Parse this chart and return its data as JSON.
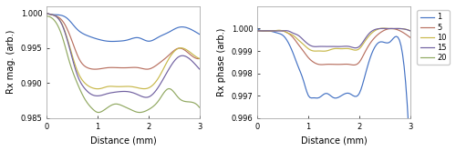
{
  "colors": {
    "1": "#4472C4",
    "5": "#B87060",
    "10": "#C8B84A",
    "15": "#7060A0",
    "20": "#90A860"
  },
  "legend_labels": [
    "1",
    "5",
    "10",
    "15",
    "20"
  ],
  "xlabel": "Distance (mm)",
  "ylabel_left": "Rx mag. (arb.)",
  "ylabel_right": "Rx phase (arb.)",
  "xlim": [
    0,
    3
  ],
  "ylim_left": [
    0.985,
    1.001
  ],
  "ylim_right": [
    0.996,
    1.001
  ],
  "yticks_left": [
    0.985,
    0.99,
    0.995,
    1.0
  ],
  "yticks_right": [
    0.996,
    0.997,
    0.998,
    0.999,
    1.0
  ],
  "figsize": [
    5.0,
    1.66
  ],
  "dpi": 100,
  "lw": 0.85,
  "background_color": "#ffffff",
  "mag_1": [
    [
      0,
      1.0
    ],
    [
      0.15,
      0.9998
    ],
    [
      0.4,
      0.9993
    ],
    [
      0.6,
      0.9977
    ],
    [
      0.8,
      0.9968
    ],
    [
      1.0,
      0.9963
    ],
    [
      1.2,
      0.996
    ],
    [
      1.4,
      0.996
    ],
    [
      1.6,
      0.9962
    ],
    [
      1.8,
      0.9965
    ],
    [
      2.0,
      0.996
    ],
    [
      2.2,
      0.9966
    ],
    [
      2.4,
      0.9973
    ],
    [
      2.6,
      0.998
    ],
    [
      2.8,
      0.9978
    ],
    [
      3.0,
      0.997
    ]
  ],
  "mag_5": [
    [
      0,
      1.0
    ],
    [
      0.15,
      0.9997
    ],
    [
      0.35,
      0.9985
    ],
    [
      0.5,
      0.996
    ],
    [
      0.65,
      0.9933
    ],
    [
      0.8,
      0.9922
    ],
    [
      1.0,
      0.992
    ],
    [
      1.2,
      0.9922
    ],
    [
      1.4,
      0.9922
    ],
    [
      1.6,
      0.9922
    ],
    [
      1.8,
      0.9922
    ],
    [
      2.0,
      0.992
    ],
    [
      2.2,
      0.9928
    ],
    [
      2.4,
      0.994
    ],
    [
      2.6,
      0.995
    ],
    [
      2.8,
      0.9942
    ],
    [
      3.0,
      0.9935
    ]
  ],
  "mag_10": [
    [
      0,
      1.0
    ],
    [
      0.15,
      0.9997
    ],
    [
      0.3,
      0.9985
    ],
    [
      0.45,
      0.9953
    ],
    [
      0.6,
      0.9918
    ],
    [
      0.75,
      0.99
    ],
    [
      0.9,
      0.9893
    ],
    [
      1.05,
      0.9892
    ],
    [
      1.2,
      0.9895
    ],
    [
      1.35,
      0.9895
    ],
    [
      1.5,
      0.9895
    ],
    [
      1.65,
      0.9895
    ],
    [
      1.8,
      0.9893
    ],
    [
      2.0,
      0.9893
    ],
    [
      2.2,
      0.9908
    ],
    [
      2.4,
      0.9935
    ],
    [
      2.6,
      0.995
    ],
    [
      2.8,
      0.9945
    ],
    [
      3.0,
      0.9935
    ]
  ],
  "mag_15": [
    [
      0,
      1.0
    ],
    [
      0.15,
      0.9997
    ],
    [
      0.3,
      0.9984
    ],
    [
      0.45,
      0.995
    ],
    [
      0.6,
      0.9912
    ],
    [
      0.75,
      0.9892
    ],
    [
      0.9,
      0.9883
    ],
    [
      1.05,
      0.9882
    ],
    [
      1.2,
      0.9885
    ],
    [
      1.35,
      0.9887
    ],
    [
      1.5,
      0.9888
    ],
    [
      1.65,
      0.9887
    ],
    [
      1.8,
      0.9883
    ],
    [
      2.0,
      0.988
    ],
    [
      2.2,
      0.9895
    ],
    [
      2.4,
      0.992
    ],
    [
      2.6,
      0.9938
    ],
    [
      2.8,
      0.9935
    ],
    [
      3.0,
      0.992
    ]
  ],
  "mag_20": [
    [
      0,
      0.9996
    ],
    [
      0.15,
      0.999
    ],
    [
      0.3,
      0.9968
    ],
    [
      0.45,
      0.993
    ],
    [
      0.6,
      0.99
    ],
    [
      0.75,
      0.9877
    ],
    [
      0.9,
      0.9863
    ],
    [
      1.0,
      0.9858
    ],
    [
      1.1,
      0.986
    ],
    [
      1.2,
      0.9865
    ],
    [
      1.35,
      0.987
    ],
    [
      1.5,
      0.9867
    ],
    [
      1.65,
      0.9862
    ],
    [
      1.8,
      0.9858
    ],
    [
      2.0,
      0.9862
    ],
    [
      2.2,
      0.9875
    ],
    [
      2.4,
      0.9892
    ],
    [
      2.6,
      0.9878
    ],
    [
      2.8,
      0.9873
    ],
    [
      3.0,
      0.9865
    ]
  ],
  "phase_1": [
    [
      0,
      1.0
    ],
    [
      0.1,
      0.9999
    ],
    [
      0.2,
      0.9999
    ],
    [
      0.4,
      0.9998
    ],
    [
      0.5,
      0.9997
    ],
    [
      0.6,
      0.9994
    ],
    [
      0.7,
      0.9989
    ],
    [
      0.8,
      0.9983
    ],
    [
      0.9,
      0.9977
    ],
    [
      1.0,
      0.997
    ],
    [
      1.1,
      0.9969
    ],
    [
      1.2,
      0.9969
    ],
    [
      1.35,
      0.9971
    ],
    [
      1.5,
      0.9969
    ],
    [
      1.65,
      0.997
    ],
    [
      1.8,
      0.9971
    ],
    [
      2.0,
      0.9971
    ],
    [
      2.1,
      0.9978
    ],
    [
      2.2,
      0.9986
    ],
    [
      2.4,
      0.9994
    ],
    [
      2.6,
      0.9994
    ],
    [
      2.8,
      0.9994
    ],
    [
      3.0,
      0.994
    ]
  ],
  "phase_5": [
    [
      0,
      0.9999
    ],
    [
      0.1,
      0.9999
    ],
    [
      0.3,
      0.9999
    ],
    [
      0.5,
      0.9999
    ],
    [
      0.6,
      0.9998
    ],
    [
      0.7,
      0.9996
    ],
    [
      0.8,
      0.9993
    ],
    [
      0.9,
      0.999
    ],
    [
      1.0,
      0.9987
    ],
    [
      1.1,
      0.9985
    ],
    [
      1.2,
      0.9984
    ],
    [
      1.35,
      0.9984
    ],
    [
      1.5,
      0.9984
    ],
    [
      1.65,
      0.9984
    ],
    [
      1.8,
      0.9984
    ],
    [
      2.0,
      0.9985
    ],
    [
      2.1,
      0.9989
    ],
    [
      2.2,
      0.9993
    ],
    [
      2.4,
      0.9998
    ],
    [
      2.6,
      1.0
    ],
    [
      2.8,
      0.9999
    ],
    [
      3.0,
      0.9996
    ]
  ],
  "phase_10": [
    [
      0,
      0.9999
    ],
    [
      0.1,
      0.9999
    ],
    [
      0.3,
      0.9999
    ],
    [
      0.5,
      0.9999
    ],
    [
      0.6,
      0.9998
    ],
    [
      0.7,
      0.9997
    ],
    [
      0.8,
      0.9995
    ],
    [
      0.9,
      0.9993
    ],
    [
      1.0,
      0.9991
    ],
    [
      1.1,
      0.999
    ],
    [
      1.2,
      0.999
    ],
    [
      1.35,
      0.999
    ],
    [
      1.5,
      0.9991
    ],
    [
      1.65,
      0.9991
    ],
    [
      1.8,
      0.9991
    ],
    [
      2.0,
      0.9991
    ],
    [
      2.1,
      0.9994
    ],
    [
      2.2,
      0.9997
    ],
    [
      2.4,
      1.0
    ],
    [
      2.6,
      1.0
    ],
    [
      2.8,
      1.0
    ],
    [
      3.0,
      0.9999
    ]
  ],
  "phase_15": [
    [
      0,
      0.9999
    ],
    [
      0.1,
      0.9999
    ],
    [
      0.3,
      0.9999
    ],
    [
      0.5,
      0.9999
    ],
    [
      0.6,
      0.9999
    ],
    [
      0.7,
      0.9998
    ],
    [
      0.8,
      0.9997
    ],
    [
      0.9,
      0.9995
    ],
    [
      1.0,
      0.9993
    ],
    [
      1.1,
      0.9992
    ],
    [
      1.2,
      0.9992
    ],
    [
      1.35,
      0.9992
    ],
    [
      1.5,
      0.9992
    ],
    [
      1.65,
      0.9992
    ],
    [
      1.8,
      0.9992
    ],
    [
      2.0,
      0.9992
    ],
    [
      2.1,
      0.9995
    ],
    [
      2.2,
      0.9998
    ],
    [
      2.4,
      1.0
    ],
    [
      2.6,
      1.0
    ],
    [
      2.8,
      1.0
    ],
    [
      3.0,
      0.9999
    ]
  ]
}
